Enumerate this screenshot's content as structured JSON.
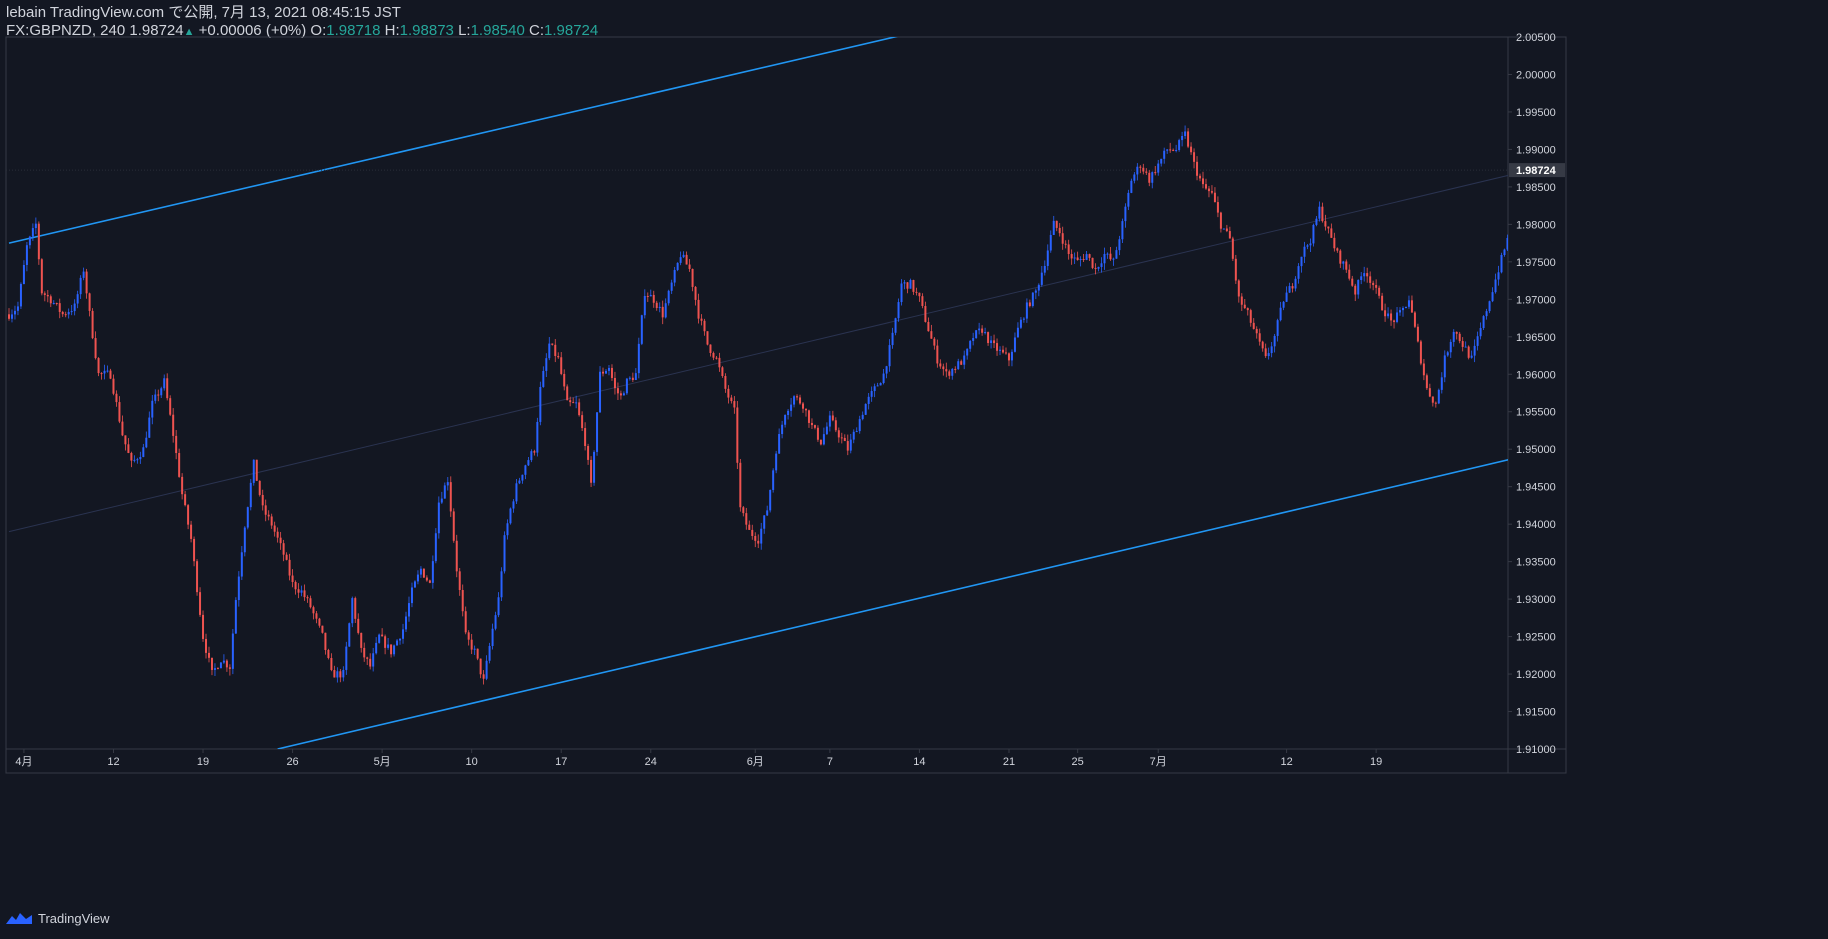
{
  "header": {
    "publish_line": "lebain TradingView.com で公開, 7月 13, 2021 08:45:15 JST",
    "symbol": "FX:GBPNZD, 240",
    "last": "1.98724",
    "up_arrow": "▲",
    "change": "+0.00006 (+0%)",
    "o_label": "O:",
    "o_val": "1.98718",
    "h_label": "H:",
    "h_val": "1.98873",
    "l_label": "L:",
    "l_val": "1.98540",
    "c_label": "C:",
    "c_val": "1.98724"
  },
  "footer": {
    "brand": "TradingView"
  },
  "colors": {
    "background": "#131722",
    "up": "#2962ff",
    "down": "#ef5350",
    "trendline": "#2196f3",
    "text": "#d1d4dc",
    "axis_border": "#363a45",
    "value_positive": "#26a69a"
  },
  "chart_data": {
    "type": "candlestick",
    "symbol": "FX:GBPNZD",
    "interval": "240",
    "ylim": [
      1.91,
      2.005
    ],
    "y_ticks": [
      "2.00500",
      "2.00000",
      "1.99500",
      "1.99000",
      "1.98500",
      "1.98000",
      "1.97500",
      "1.97000",
      "1.96500",
      "1.96000",
      "1.95500",
      "1.95000",
      "1.94500",
      "1.94000",
      "1.93500",
      "1.93000",
      "1.92500",
      "1.92000",
      "1.91500",
      "1.91000"
    ],
    "last_price_label": "1.98724",
    "x_ticks": [
      {
        "label": "4月",
        "bar": 5
      },
      {
        "label": "12",
        "bar": 35
      },
      {
        "label": "19",
        "bar": 65
      },
      {
        "label": "26",
        "bar": 95
      },
      {
        "label": "5月",
        "bar": 125
      },
      {
        "label": "10",
        "bar": 155
      },
      {
        "label": "17",
        "bar": 185
      },
      {
        "label": "24",
        "bar": 215
      },
      {
        "label": "6月",
        "bar": 250
      },
      {
        "label": "7",
        "bar": 275
      },
      {
        "label": "14",
        "bar": 305
      },
      {
        "label": "21",
        "bar": 335
      },
      {
        "label": "25",
        "bar": 358
      },
      {
        "label": "7月",
        "bar": 385
      },
      {
        "label": "12",
        "bar": 428
      },
      {
        "label": "19",
        "bar": 458
      }
    ],
    "price_path": [
      [
        0,
        1.968
      ],
      [
        3,
        1.969
      ],
      [
        6,
        1.977
      ],
      [
        9,
        1.98
      ],
      [
        11,
        1.971
      ],
      [
        14,
        1.97
      ],
      [
        18,
        1.968
      ],
      [
        22,
        1.969
      ],
      [
        25,
        1.974
      ],
      [
        27,
        1.968
      ],
      [
        30,
        1.96
      ],
      [
        34,
        1.96
      ],
      [
        38,
        1.952
      ],
      [
        41,
        1.948
      ],
      [
        45,
        1.95
      ],
      [
        48,
        1.956
      ],
      [
        52,
        1.959
      ],
      [
        55,
        1.952
      ],
      [
        58,
        1.944
      ],
      [
        61,
        1.938
      ],
      [
        65,
        1.925
      ],
      [
        68,
        1.92
      ],
      [
        71,
        1.922
      ],
      [
        74,
        1.921
      ],
      [
        76,
        1.93
      ],
      [
        79,
        1.94
      ],
      [
        82,
        1.948
      ],
      [
        85,
        1.942
      ],
      [
        88,
        1.94
      ],
      [
        92,
        1.936
      ],
      [
        95,
        1.932
      ],
      [
        98,
        1.931
      ],
      [
        101,
        1.929
      ],
      [
        105,
        1.925
      ],
      [
        108,
        1.92
      ],
      [
        112,
        1.92
      ],
      [
        115,
        1.93
      ],
      [
        118,
        1.923
      ],
      [
        121,
        1.921
      ],
      [
        124,
        1.925
      ],
      [
        128,
        1.923
      ],
      [
        132,
        1.926
      ],
      [
        135,
        1.931
      ],
      [
        138,
        1.934
      ],
      [
        141,
        1.932
      ],
      [
        144,
        1.943
      ],
      [
        147,
        1.946
      ],
      [
        150,
        1.934
      ],
      [
        153,
        1.925
      ],
      [
        156,
        1.923
      ],
      [
        159,
        1.919
      ],
      [
        162,
        1.926
      ],
      [
        164,
        1.93
      ],
      [
        166,
        1.938
      ],
      [
        168,
        1.942
      ],
      [
        170,
        1.945
      ],
      [
        173,
        1.948
      ],
      [
        176,
        1.95
      ],
      [
        178,
        1.958
      ],
      [
        181,
        1.964
      ],
      [
        184,
        1.962
      ],
      [
        187,
        1.956
      ],
      [
        190,
        1.956
      ],
      [
        193,
        1.951
      ],
      [
        195,
        1.945
      ],
      [
        198,
        1.96
      ],
      [
        201,
        1.961
      ],
      [
        203,
        1.958
      ],
      [
        205,
        1.957
      ],
      [
        207,
        1.959
      ],
      [
        210,
        1.96
      ],
      [
        213,
        1.971
      ],
      [
        216,
        1.97
      ],
      [
        219,
        1.968
      ],
      [
        222,
        1.972
      ],
      [
        225,
        1.976
      ],
      [
        228,
        1.974
      ],
      [
        231,
        1.968
      ],
      [
        234,
        1.964
      ],
      [
        237,
        1.962
      ],
      [
        240,
        1.958
      ],
      [
        243,
        1.955
      ],
      [
        245,
        1.942
      ],
      [
        248,
        1.939
      ],
      [
        251,
        1.938
      ],
      [
        254,
        1.942
      ],
      [
        257,
        1.95
      ],
      [
        260,
        1.955
      ],
      [
        263,
        1.957
      ],
      [
        266,
        1.956
      ],
      [
        269,
        1.953
      ],
      [
        272,
        1.951
      ],
      [
        275,
        1.954
      ],
      [
        278,
        1.952
      ],
      [
        281,
        1.95
      ],
      [
        284,
        1.953
      ],
      [
        287,
        1.956
      ],
      [
        290,
        1.958
      ],
      [
        293,
        1.96
      ],
      [
        296,
        1.965
      ],
      [
        299,
        1.972
      ],
      [
        302,
        1.972
      ],
      [
        305,
        1.97
      ],
      [
        308,
        1.966
      ],
      [
        311,
        1.962
      ],
      [
        314,
        1.96
      ],
      [
        317,
        1.961
      ],
      [
        320,
        1.962
      ],
      [
        323,
        1.965
      ],
      [
        326,
        1.966
      ],
      [
        329,
        1.964
      ],
      [
        332,
        1.963
      ],
      [
        335,
        1.962
      ],
      [
        338,
        1.966
      ],
      [
        341,
        1.969
      ],
      [
        344,
        1.971
      ],
      [
        347,
        1.975
      ],
      [
        350,
        1.98
      ],
      [
        352,
        1.979
      ],
      [
        355,
        1.976
      ],
      [
        358,
        1.975
      ],
      [
        361,
        1.976
      ],
      [
        364,
        1.974
      ],
      [
        367,
        1.976
      ],
      [
        370,
        1.975
      ],
      [
        373,
        1.98
      ],
      [
        376,
        1.986
      ],
      [
        379,
        1.988
      ],
      [
        382,
        1.986
      ],
      [
        385,
        1.988
      ],
      [
        388,
        1.99
      ],
      [
        391,
        1.99
      ],
      [
        394,
        1.992
      ],
      [
        397,
        1.988
      ],
      [
        400,
        1.985
      ],
      [
        403,
        1.984
      ],
      [
        406,
        1.98
      ],
      [
        409,
        1.978
      ],
      [
        412,
        1.97
      ],
      [
        415,
        1.968
      ],
      [
        418,
        1.965
      ],
      [
        421,
        1.962
      ],
      [
        424,
        1.965
      ],
      [
        427,
        1.97
      ],
      [
        430,
        1.972
      ],
      [
        433,
        1.976
      ],
      [
        436,
        1.978
      ],
      [
        439,
        1.982
      ],
      [
        442,
        1.979
      ],
      [
        445,
        1.976
      ],
      [
        448,
        1.974
      ],
      [
        451,
        1.971
      ],
      [
        454,
        1.974
      ],
      [
        457,
        1.972
      ],
      [
        460,
        1.969
      ],
      [
        463,
        1.967
      ],
      [
        466,
        1.968
      ],
      [
        469,
        1.97
      ],
      [
        472,
        1.964
      ],
      [
        475,
        1.958
      ],
      [
        478,
        1.956
      ],
      [
        481,
        1.962
      ],
      [
        484,
        1.966
      ],
      [
        487,
        1.964
      ],
      [
        490,
        1.962
      ],
      [
        493,
        1.966
      ],
      [
        496,
        1.97
      ],
      [
        499,
        1.974
      ],
      [
        502,
        1.978
      ],
      [
        505,
        1.982
      ],
      [
        508,
        1.985
      ],
      [
        511,
        1.983
      ],
      [
        514,
        1.983
      ],
      [
        517,
        1.986
      ],
      [
        520,
        1.988
      ],
      [
        523,
        1.987
      ],
      [
        526,
        1.9872
      ]
    ],
    "n_bars": 527,
    "trendlines": [
      {
        "name": "channel-upper",
        "from": {
          "bar": 0,
          "price": 1.9775
        },
        "to": {
          "bar": 302,
          "price": 2.0055
        }
      },
      {
        "name": "channel-lower",
        "from": {
          "bar": 90,
          "price": 1.91
        },
        "to": {
          "bar": 560,
          "price": 1.954
        }
      },
      {
        "name": "channel-middle",
        "from": {
          "bar": 0,
          "price": 1.939
        },
        "to": {
          "bar": 560,
          "price": 1.992
        }
      }
    ]
  }
}
